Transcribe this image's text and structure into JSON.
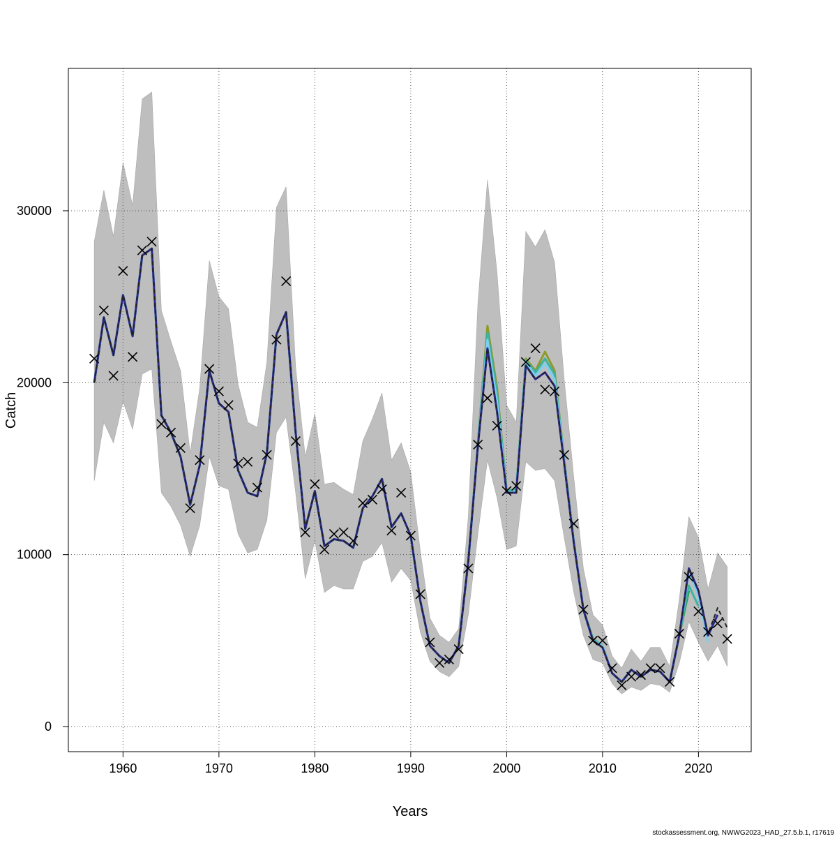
{
  "chart_data": {
    "type": "line",
    "title": "",
    "xlabel": "Years",
    "ylabel": "Catch",
    "xlim": [
      1954.3,
      2025.5
    ],
    "ylim": [
      -1460,
      38280
    ],
    "x_ticks": [
      1960,
      1970,
      1980,
      1990,
      2000,
      2010,
      2020
    ],
    "x_tick_labels": [
      "1960",
      "1970",
      "1980",
      "1990",
      "2000",
      "2010",
      "2020"
    ],
    "y_ticks": [
      0,
      10000,
      20000,
      30000
    ],
    "y_tick_labels": [
      "0",
      "10000",
      "20000",
      "30000"
    ],
    "grid": true,
    "legend": "none",
    "years": [
      1957,
      1958,
      1959,
      1960,
      1961,
      1962,
      1963,
      1964,
      1965,
      1966,
      1967,
      1968,
      1969,
      1970,
      1971,
      1972,
      1973,
      1974,
      1975,
      1976,
      1977,
      1978,
      1979,
      1980,
      1981,
      1982,
      1983,
      1984,
      1985,
      1986,
      1987,
      1988,
      1989,
      1990,
      1991,
      1992,
      1993,
      1994,
      1995,
      1996,
      1997,
      1998,
      1999,
      2000,
      2001,
      2002,
      2003,
      2004,
      2005,
      2006,
      2007,
      2008,
      2009,
      2010,
      2011,
      2012,
      2013,
      2014,
      2015,
      2016,
      2017,
      2018,
      2019,
      2020,
      2021,
      2022,
      2023
    ],
    "confidence_band": {
      "color": "#bebebe",
      "upper": [
        28200,
        31200,
        28500,
        32800,
        30300,
        36500,
        36900,
        24200,
        22400,
        20700,
        15900,
        19700,
        27100,
        25000,
        24300,
        19900,
        17700,
        17400,
        21200,
        30200,
        31400,
        20900,
        15700,
        18200,
        14100,
        14200,
        13800,
        13500,
        16600,
        17900,
        19400,
        15500,
        16500,
        14800,
        10200,
        6300,
        5300,
        4900,
        5700,
        12200,
        24600,
        31800,
        26400,
        18700,
        17700,
        28800,
        27900,
        28900,
        27000,
        20200,
        14500,
        9200,
        6500,
        5900,
        4100,
        3400,
        4500,
        3800,
        4600,
        4600,
        3500,
        7400,
        12200,
        11000,
        8000,
        10100,
        9300
      ],
      "lower": [
        14300,
        17700,
        16500,
        18900,
        17300,
        20500,
        20800,
        13600,
        12800,
        11700,
        9900,
        11700,
        15700,
        14000,
        13800,
        11200,
        10100,
        10300,
        12000,
        17100,
        18000,
        13600,
        8600,
        10800,
        7800,
        8200,
        8000,
        8000,
        9600,
        9900,
        10700,
        8400,
        9200,
        8500,
        5500,
        3800,
        3200,
        2900,
        3500,
        6500,
        11200,
        15500,
        13300,
        10300,
        10500,
        15400,
        14900,
        15000,
        14300,
        11000,
        7800,
        5300,
        3900,
        3700,
        2500,
        1900,
        2300,
        2100,
        2500,
        2400,
        2000,
        3700,
        6100,
        4900,
        3800,
        4700,
        3500
      ]
    },
    "series": [
      {
        "color": "#8f9a2a",
        "dashed": false,
        "values": [
          20000,
          23800,
          21600,
          25100,
          22700,
          27400,
          27800,
          18100,
          17100,
          15700,
          12900,
          15200,
          20700,
          18800,
          18300,
          14900,
          13600,
          13400,
          15900,
          22800,
          24100,
          17100,
          11500,
          13700,
          10500,
          10900,
          10800,
          10400,
          12700,
          13400,
          14400,
          11600,
          12400,
          11100,
          7300,
          4700,
          4100,
          3700,
          4700,
          9600,
          16500,
          23300,
          19700,
          13700,
          13800,
          21400,
          20700,
          21800,
          20700,
          15500,
          10800,
          6800,
          5100,
          4700,
          3100,
          2600,
          3300,
          2900,
          3300,
          3200,
          2600,
          5300
        ]
      },
      {
        "color": "#1e9a4a",
        "dashed": false,
        "values": [
          20000,
          23800,
          21600,
          25100,
          22700,
          27400,
          27800,
          18100,
          17100,
          15700,
          12900,
          15200,
          20700,
          18800,
          18300,
          14900,
          13600,
          13400,
          15900,
          22800,
          24100,
          17100,
          11500,
          13700,
          10500,
          10900,
          10800,
          10400,
          12700,
          13400,
          14400,
          11600,
          12400,
          11100,
          7300,
          4700,
          4100,
          3700,
          4700,
          9600,
          16500,
          22900,
          19400,
          13700,
          13800,
          21300,
          20600,
          21400,
          20500,
          15500,
          10800,
          6800,
          5100,
          4700,
          3100,
          2600,
          3300,
          2900,
          3300,
          3200,
          2600,
          5300,
          7900
        ]
      },
      {
        "color": "#3fb3a0",
        "dashed": false,
        "values": [
          20000,
          23800,
          21600,
          25100,
          22700,
          27400,
          27800,
          18100,
          17100,
          15700,
          12900,
          15200,
          20700,
          18800,
          18300,
          14900,
          13600,
          13400,
          15900,
          22800,
          24100,
          17100,
          11500,
          13700,
          10500,
          10900,
          10800,
          10400,
          12700,
          13400,
          14400,
          11600,
          12400,
          11100,
          7300,
          4700,
          4100,
          3700,
          4700,
          9600,
          16500,
          22900,
          19400,
          13700,
          13800,
          21300,
          20600,
          21400,
          20500,
          15500,
          10800,
          6800,
          5100,
          4700,
          3100,
          2600,
          3300,
          2900,
          3300,
          3200,
          2600,
          5300,
          8200,
          7000
        ]
      },
      {
        "color": "#7ccfee",
        "dashed": false,
        "values": [
          20000,
          23800,
          21600,
          25100,
          22700,
          27400,
          27800,
          18100,
          17100,
          15700,
          12900,
          15200,
          20700,
          18800,
          18300,
          14900,
          13600,
          13400,
          15900,
          22800,
          24100,
          17100,
          11500,
          13700,
          10500,
          10900,
          10800,
          10400,
          12700,
          13400,
          14400,
          11600,
          12400,
          11100,
          7300,
          4700,
          4100,
          3700,
          4700,
          9600,
          16400,
          22500,
          18900,
          13600,
          13700,
          21200,
          20400,
          21100,
          20200,
          15400,
          10800,
          6800,
          5000,
          4700,
          3100,
          2600,
          3300,
          2900,
          3300,
          3200,
          2600,
          5300,
          9000,
          7600,
          4900
        ]
      },
      {
        "color": "#2e2a8e",
        "dashed": false,
        "values": [
          20000,
          23800,
          21600,
          25100,
          22700,
          27400,
          27800,
          18100,
          17100,
          15700,
          12900,
          15200,
          20700,
          18800,
          18300,
          14900,
          13600,
          13400,
          15900,
          22800,
          24100,
          17100,
          11500,
          13700,
          10500,
          10900,
          10800,
          10400,
          12700,
          13400,
          14400,
          11600,
          12400,
          11100,
          7300,
          4700,
          4100,
          3700,
          4700,
          9600,
          16300,
          22000,
          18300,
          13600,
          13600,
          21000,
          20200,
          20600,
          19800,
          15300,
          10700,
          6800,
          5000,
          4600,
          3100,
          2600,
          3300,
          2900,
          3300,
          3200,
          2600,
          5300,
          9200,
          7900,
          5300,
          6500
        ]
      },
      {
        "color": "#222222",
        "dashed": true,
        "values": [
          20000,
          23800,
          21600,
          25100,
          22700,
          27400,
          27800,
          18100,
          17100,
          15700,
          12900,
          15200,
          20700,
          18800,
          18300,
          14900,
          13600,
          13400,
          15900,
          22800,
          24100,
          17100,
          11500,
          13700,
          10500,
          10900,
          10800,
          10400,
          12700,
          13400,
          14400,
          11600,
          12400,
          11100,
          7300,
          4700,
          4100,
          3700,
          4700,
          9600,
          16300,
          22000,
          18300,
          13600,
          13600,
          21000,
          20200,
          20600,
          19800,
          15300,
          10700,
          6800,
          5000,
          4600,
          3100,
          2600,
          3300,
          2900,
          3300,
          3200,
          2600,
          5300,
          9200,
          7900,
          5400,
          6900,
          5750
        ]
      }
    ],
    "observed": {
      "marker": "x",
      "color": "#000000",
      "values": [
        21400,
        24200,
        20400,
        26500,
        21500,
        27700,
        28200,
        17600,
        17100,
        16200,
        12700,
        15500,
        20800,
        19500,
        18700,
        15300,
        15400,
        13900,
        15800,
        22500,
        25900,
        16600,
        11300,
        14100,
        10300,
        11200,
        11300,
        10800,
        13000,
        13200,
        13800,
        11400,
        13600,
        11100,
        7700,
        4900,
        3700,
        3900,
        4500,
        9200,
        16400,
        19100,
        17500,
        13700,
        14000,
        21200,
        22000,
        19600,
        19500,
        15800,
        11800,
        6800,
        5000,
        5000,
        3400,
        2400,
        2900,
        3000,
        3400,
        3400,
        2600,
        5400,
        8700,
        6700,
        5500,
        6000,
        5100
      ]
    }
  },
  "footer": "stockassessment.org, NWWG2023_HAD_27.5.b.1, r17619"
}
